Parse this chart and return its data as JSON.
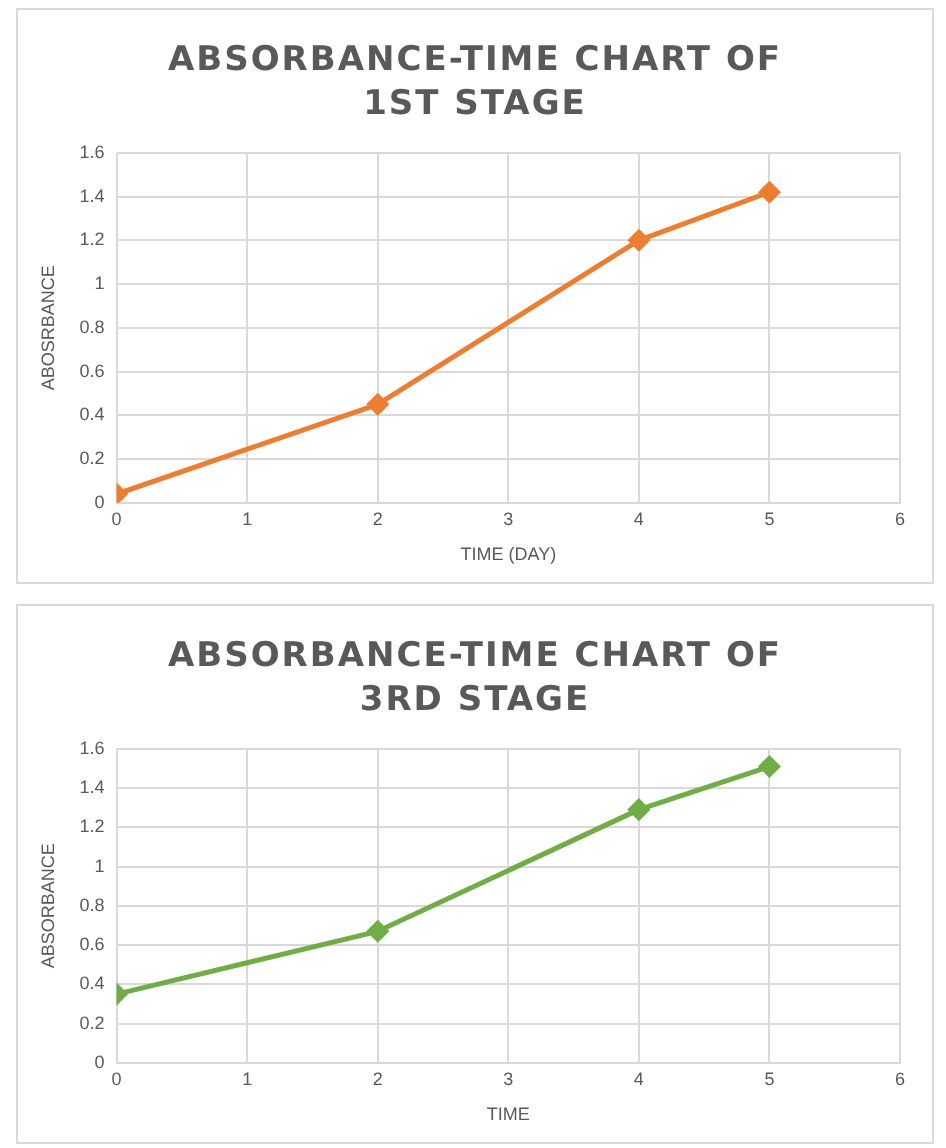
{
  "chart_data": [
    {
      "type": "line",
      "title": "ABSORBANCE-TIME CHART OF 1ST STAGE",
      "xlabel": "TIME (DAY)",
      "ylabel": "ABOSRBANCE",
      "x": [
        0,
        2,
        4,
        5
      ],
      "series": [
        {
          "color": "#ed7d31",
          "values": [
            0.04,
            0.45,
            1.2,
            1.42
          ]
        }
      ],
      "xlim": [
        0,
        6
      ],
      "xticks": [
        0,
        1,
        2,
        3,
        4,
        5,
        6
      ],
      "ylim": [
        0,
        1.6
      ],
      "yticks": [
        0,
        0.2,
        0.4,
        0.6,
        0.8,
        1,
        1.2,
        1.4,
        1.6
      ],
      "grid": true,
      "legend": false,
      "marker": "diamond",
      "line_style": "solid"
    },
    {
      "type": "line",
      "title": "ABSORBANCE-TIME CHART OF 3RD STAGE",
      "xlabel": "TIME",
      "ylabel": "ABSORBANCE",
      "x": [
        0,
        2,
        4,
        5
      ],
      "series": [
        {
          "color": "#70ad47",
          "values": [
            0.35,
            0.67,
            1.29,
            1.51
          ]
        }
      ],
      "xlim": [
        0,
        6
      ],
      "xticks": [
        0,
        1,
        2,
        3,
        4,
        5,
        6
      ],
      "ylim": [
        0,
        1.6
      ],
      "yticks": [
        0,
        0.2,
        0.4,
        0.6,
        0.8,
        1,
        1.2,
        1.4,
        1.6
      ],
      "grid": true,
      "legend": false,
      "marker": "diamond",
      "line_style": "solid"
    }
  ]
}
